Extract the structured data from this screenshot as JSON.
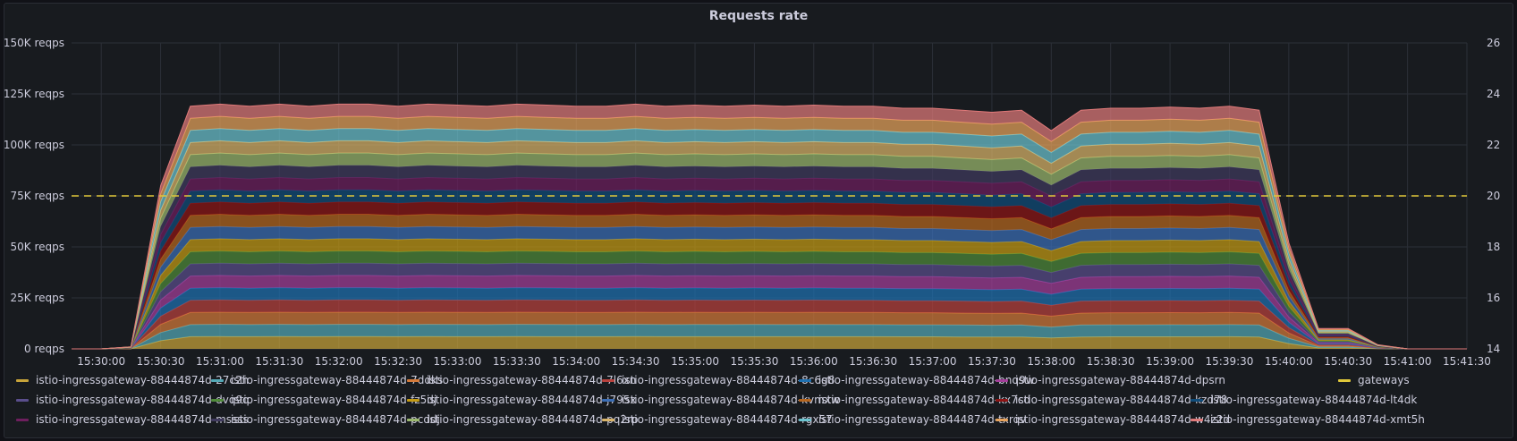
{
  "panel": {
    "title": "Requests rate"
  },
  "colors": {
    "background": "#181b1f",
    "grid": "#2c3038",
    "axis_text": "#ccccdc",
    "threshold": "#e0c73a"
  },
  "chart_data": {
    "type": "area",
    "stacked": true,
    "title": "Requests rate",
    "x": [
      "15:29:45",
      "15:30:00",
      "15:30:15",
      "15:30:30",
      "15:30:45",
      "15:31:00",
      "15:31:15",
      "15:31:30",
      "15:31:45",
      "15:32:00",
      "15:32:15",
      "15:32:30",
      "15:32:45",
      "15:33:00",
      "15:33:15",
      "15:33:30",
      "15:33:45",
      "15:34:00",
      "15:34:15",
      "15:34:30",
      "15:34:45",
      "15:35:00",
      "15:35:15",
      "15:35:30",
      "15:35:45",
      "15:36:00",
      "15:36:15",
      "15:36:30",
      "15:36:45",
      "15:37:00",
      "15:37:15",
      "15:37:30",
      "15:37:45",
      "15:38:00",
      "15:38:15",
      "15:38:30",
      "15:38:45",
      "15:39:00",
      "15:39:15",
      "15:39:30",
      "15:39:45",
      "15:40:00",
      "15:40:15",
      "15:40:30",
      "15:40:45",
      "15:41:00",
      "15:41:15",
      "15:41:30"
    ],
    "x_ticks": [
      "15:30:00",
      "15:30:30",
      "15:31:00",
      "15:31:30",
      "15:32:00",
      "15:32:30",
      "15:33:00",
      "15:33:30",
      "15:34:00",
      "15:34:30",
      "15:35:00",
      "15:35:30",
      "15:36:00",
      "15:36:30",
      "15:37:00",
      "15:37:30",
      "15:38:00",
      "15:38:30",
      "15:39:00",
      "15:39:30",
      "15:40:00",
      "15:40:30",
      "15:41:00",
      "15:41:30"
    ],
    "y_left": {
      "ylim": [
        0,
        150000
      ],
      "ticks": [
        "0 reqps",
        "25K reqps",
        "50K reqps",
        "75K reqps",
        "100K reqps",
        "125K reqps",
        "150K reqps"
      ]
    },
    "y_right": {
      "ylim": [
        14,
        26
      ],
      "ticks": [
        "14",
        "16",
        "18",
        "20",
        "22",
        "24",
        "26"
      ]
    },
    "total_requests": [
      0,
      0,
      1000,
      80000,
      119000,
      120000,
      119000,
      120000,
      119000,
      120000,
      120000,
      119000,
      120000,
      119500,
      119000,
      120000,
      119500,
      119000,
      119000,
      120000,
      119000,
      119500,
      119000,
      119500,
      119000,
      119500,
      119000,
      119000,
      118000,
      118000,
      117000,
      116000,
      117000,
      107000,
      117000,
      118000,
      118000,
      118500,
      118000,
      119000,
      117000,
      52000,
      10000,
      10000,
      2000,
      0,
      0,
      0
    ],
    "series": [
      {
        "name": "istio-ingressgateway-88444874d-27c2h",
        "color": "#c8a43a",
        "share": 1
      },
      {
        "name": "istio-ingressgateway-88444874d-7ddks",
        "color": "#53a8b6",
        "share": 1
      },
      {
        "name": "istio-ingressgateway-88444874d-7l6xn",
        "color": "#d47a3a",
        "share": 1
      },
      {
        "name": "istio-ingressgateway-88444874d-8c6g8",
        "color": "#b8413d",
        "share": 1
      },
      {
        "name": "istio-ingressgateway-88444874d-bnq9w",
        "color": "#1f70b0",
        "share": 1
      },
      {
        "name": "istio-ingressgateway-88444874d-dpsrn",
        "color": "#a43e9a",
        "share": 1
      },
      {
        "name": "istio-ingressgateway-88444874d-dvq9q",
        "color": "#5a4e8c",
        "share": 1
      },
      {
        "name": "istio-ingressgateway-88444874d-fz5dj",
        "color": "#4f8a3a",
        "share": 1
      },
      {
        "name": "istio-ingressgateway-88444874d-j795x",
        "color": "#c49a14",
        "share": 1
      },
      {
        "name": "istio-ingressgateway-88444874d-kvmxw",
        "color": "#3a6db5",
        "share": 1
      },
      {
        "name": "istio-ingressgateway-88444874d-kx7cd",
        "color": "#b5661f",
        "share": 1
      },
      {
        "name": "istio-ingressgateway-88444874d-kzd78",
        "color": "#8e1515",
        "share": 1
      },
      {
        "name": "istio-ingressgateway-88444874d-lt4dk",
        "color": "#0f4c7a",
        "share": 1
      },
      {
        "name": "istio-ingressgateway-88444874d-mssss",
        "color": "#6e1f5e",
        "share": 1
      },
      {
        "name": "istio-ingressgateway-88444874d-pcddj",
        "color": "#403a5e",
        "share": 1
      },
      {
        "name": "istio-ingressgateway-88444874d-pq2rp",
        "color": "#9bb86e",
        "share": 1
      },
      {
        "name": "istio-ingressgateway-88444874d-rgx57",
        "color": "#d9b46a",
        "share": 1
      },
      {
        "name": "istio-ingressgateway-88444874d-txrqv",
        "color": "#6cc4d0",
        "share": 1
      },
      {
        "name": "istio-ingressgateway-88444874d-w4z2d",
        "color": "#e8a35c",
        "share": 1
      },
      {
        "name": "istio-ingressgateway-88444874d-xmt5h",
        "color": "#e07a7a",
        "share": 1
      }
    ],
    "threshold_series": {
      "name": "gateways",
      "color": "#e0c73a",
      "value": 20,
      "axis": "right"
    },
    "grid": true,
    "legend_position": "bottom"
  }
}
